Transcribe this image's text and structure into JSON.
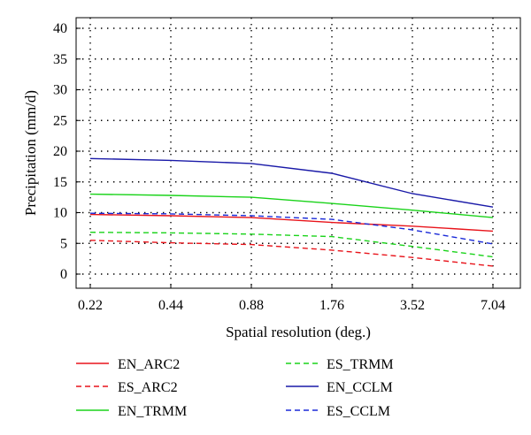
{
  "chart_data": {
    "type": "line",
    "title": "",
    "xlabel": "Spatial resolution (deg.)",
    "ylabel": "Precipitation (mm/d)",
    "x": [
      "0.22",
      "0.44",
      "0.88",
      "1.76",
      "3.52",
      "7.04"
    ],
    "ylim": [
      0,
      40
    ],
    "yticks": [
      0,
      5,
      10,
      15,
      20,
      25,
      30,
      35,
      40
    ],
    "grid": "dotted",
    "legend_position": "bottom",
    "series": [
      {
        "name": "EN_ARC2",
        "color": "#e8141b",
        "dash": "solid",
        "values": [
          9.7,
          9.5,
          9.2,
          8.4,
          7.8,
          7.0
        ]
      },
      {
        "name": "ES_ARC2",
        "color": "#e8141b",
        "dash": "dashed",
        "values": [
          5.5,
          5.1,
          4.8,
          3.9,
          2.7,
          1.3
        ]
      },
      {
        "name": "EN_TRMM",
        "color": "#1ad31a",
        "dash": "solid",
        "values": [
          13.0,
          12.8,
          12.5,
          11.5,
          10.4,
          9.2
        ]
      },
      {
        "name": "ES_TRMM",
        "color": "#1ad31a",
        "dash": "dashed",
        "values": [
          6.8,
          6.7,
          6.5,
          6.1,
          4.5,
          2.8
        ]
      },
      {
        "name": "EN_CCLM",
        "color": "#1a1aa8",
        "dash": "solid",
        "values": [
          18.8,
          18.5,
          18.0,
          16.4,
          13.1,
          10.9
        ]
      },
      {
        "name": "ES_CCLM",
        "color": "#1a2ad8",
        "dash": "dashed",
        "values": [
          9.9,
          9.8,
          9.5,
          8.9,
          7.2,
          4.9
        ]
      }
    ]
  }
}
